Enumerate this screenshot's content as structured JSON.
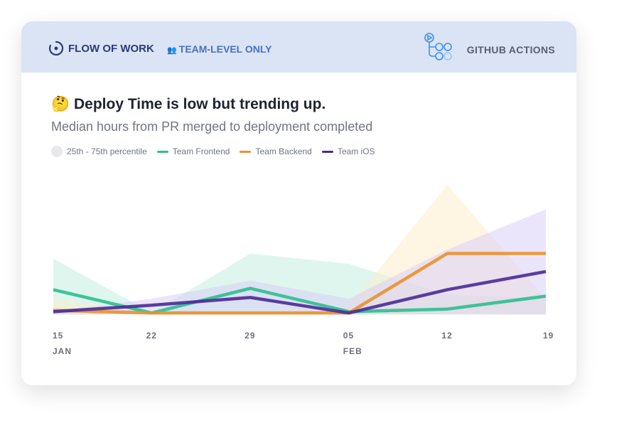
{
  "header": {
    "product": "FLOW OF WORK",
    "scope": "TEAM-LEVEL ONLY",
    "integration": "GITHUB ACTIONS"
  },
  "chart_data": {
    "type": "line",
    "title": "🤔 Deploy Time is low but trending up.",
    "subtitle": "Median hours from PR merged to deployment completed",
    "x": [
      "15",
      "22",
      "29",
      "05",
      "12",
      "19"
    ],
    "x_month_labels": {
      "0": "JAN",
      "3": "FEB"
    },
    "ylim": [
      0,
      10
    ],
    "band_label": "25th - 75th percentile",
    "series": [
      {
        "name": "Team Frontend",
        "color": "#2bbf8e",
        "band_color": "#bfeedd",
        "values": [
          1.9,
          0.1,
          2.0,
          0.2,
          0.4,
          1.4
        ],
        "band_upper": [
          4.3,
          0.1,
          4.7,
          3.9,
          1.5,
          1.2
        ]
      },
      {
        "name": "Team Backend",
        "color": "#e8912c",
        "band_color": "#fdebc8",
        "values": [
          0.3,
          0.1,
          0.1,
          0.1,
          4.7,
          4.7
        ],
        "band_upper": [
          1.2,
          0.1,
          0.1,
          0.6,
          10,
          1.2
        ]
      },
      {
        "name": "Team iOS",
        "color": "#4a2a96",
        "band_color": "#d8ccf8",
        "values": [
          0.2,
          0.7,
          1.3,
          0.1,
          1.9,
          3.3
        ],
        "band_upper": [
          0.2,
          1.2,
          2.6,
          1.2,
          5,
          8.1
        ]
      }
    ]
  }
}
